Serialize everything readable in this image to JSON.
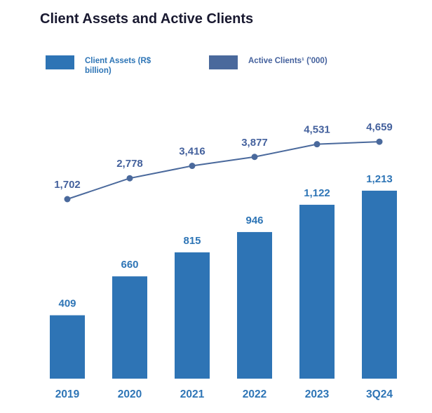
{
  "title": "Client Assets and Active Clients",
  "legend": [
    {
      "label": "Client Assets (R$ billion)",
      "swatch_color": "#2e74b5",
      "text_color": "#2e75b6"
    },
    {
      "label": "Active Clients¹ ('000)",
      "swatch_color": "#4a699c",
      "text_color": "#44619d"
    }
  ],
  "colors": {
    "bar": "#2e74b5",
    "line": "#4a699c",
    "bar_value_text": "#2e75b6",
    "line_value_text": "#44619d",
    "axis_text": "#2e75b6",
    "title_text": "#191930"
  },
  "chart_data": {
    "type": "bar",
    "categories": [
      "2019",
      "2020",
      "2021",
      "2022",
      "2023",
      "3Q24"
    ],
    "series": [
      {
        "name": "Client Assets (R$ billion)",
        "type": "bar",
        "values": [
          409,
          660,
          815,
          946,
          1122,
          1213
        ],
        "color": "#2e74b5"
      },
      {
        "name": "Active Clients ('000)",
        "type": "line",
        "values": [
          1702,
          2778,
          3416,
          3877,
          4531,
          4659
        ],
        "color": "#4a699c"
      }
    ],
    "value_labels": {
      "bar": [
        "409",
        "660",
        "815",
        "946",
        "1,122",
        "1,213"
      ],
      "line": [
        "1,702",
        "2,778",
        "3,416",
        "3,877",
        "4,531",
        "4,659"
      ]
    },
    "title": "Client Assets and Active Clients",
    "xlabel": "",
    "ylabel": "",
    "grid": false,
    "legend_position": "top-left",
    "axes_shown": false
  }
}
